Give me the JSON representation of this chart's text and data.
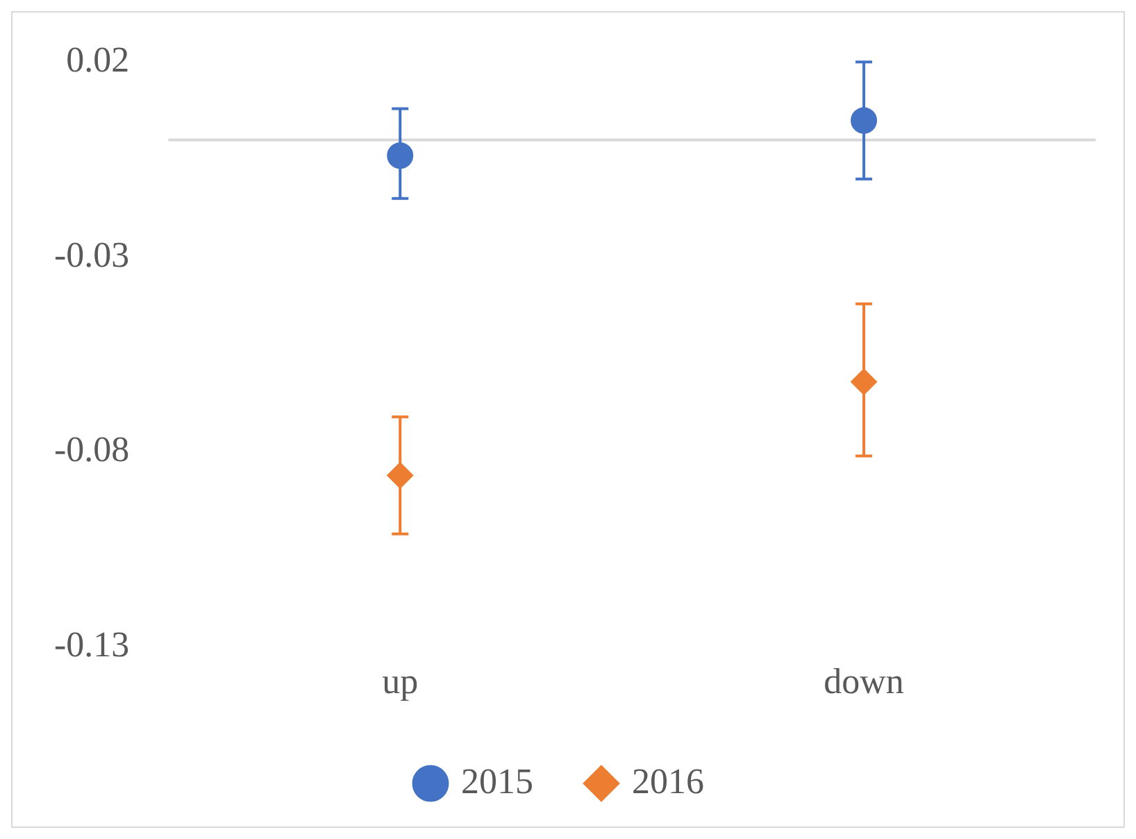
{
  "chart_data": {
    "type": "scatter",
    "categories": [
      "up",
      "down"
    ],
    "series": [
      {
        "name": "2015",
        "color": "#4472c4",
        "marker": "circle",
        "values": [
          -0.004,
          0.005
        ],
        "errors": [
          [
            -0.015,
            0.008
          ],
          [
            -0.01,
            0.02
          ]
        ]
      },
      {
        "name": "2016",
        "color": "#ed7d31",
        "marker": "diamond",
        "values": [
          -0.086,
          -0.062
        ],
        "errors": [
          [
            -0.101,
            -0.071
          ],
          [
            -0.081,
            -0.042
          ]
        ]
      }
    ],
    "ylim": [
      -0.13,
      0.02
    ],
    "yticks": [
      0.02,
      -0.03,
      -0.08,
      -0.13
    ],
    "ref_lines": [
      {
        "axis": "y",
        "value": 0,
        "color": "#d9d9d9"
      }
    ],
    "legend": "bottom"
  }
}
